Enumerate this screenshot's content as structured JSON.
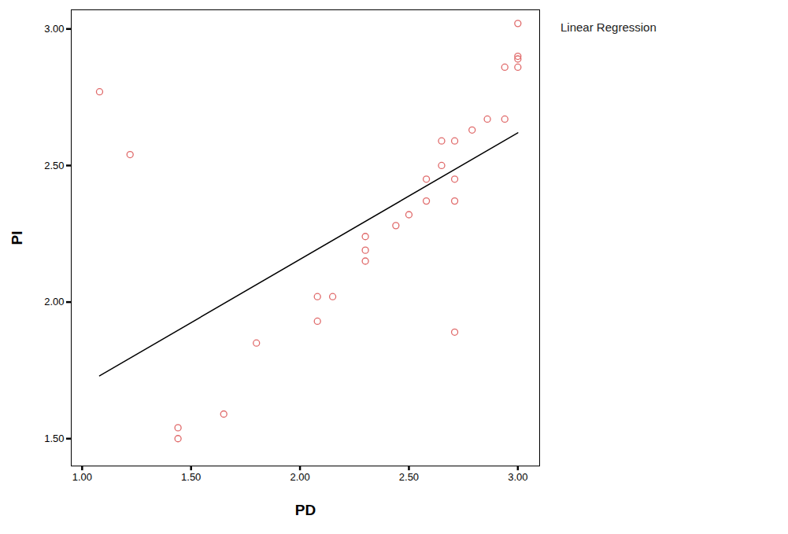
{
  "chart_data": {
    "type": "scatter",
    "x_label": "PD",
    "y_label": "PI",
    "xlim": [
      0.95,
      3.1
    ],
    "ylim": [
      1.4,
      3.07
    ],
    "xticks": [
      {
        "value": 1,
        "label": "1.00"
      },
      {
        "value": 1.5,
        "label": "1.50"
      },
      {
        "value": 2,
        "label": "2.00"
      },
      {
        "value": 2.5,
        "label": "2.50"
      },
      {
        "value": 3,
        "label": "3.00"
      }
    ],
    "yticks": [
      {
        "value": 1.5,
        "label": "1.50"
      },
      {
        "value": 2,
        "label": "2.00"
      },
      {
        "value": 2.5,
        "label": "2.50"
      },
      {
        "value": 3,
        "label": "3.00"
      }
    ],
    "legend": "top-right",
    "series": [
      {
        "type": "scatter",
        "color": "#e06a6a",
        "marker": "circle",
        "x": [
          1.08,
          1.22,
          1.44,
          1.44,
          1.65,
          1.8,
          2.08,
          2.08,
          2.15,
          2.3,
          2.3,
          2.3,
          2.44,
          2.5,
          2.58,
          2.58,
          2.65,
          2.65,
          2.71,
          2.71,
          2.71,
          2.71,
          2.79,
          2.86,
          2.94,
          2.94,
          3.0,
          3.0,
          3.0,
          3.0
        ],
        "values": [
          2.77,
          2.54,
          1.54,
          1.5,
          1.59,
          1.85,
          1.93,
          2.02,
          2.02,
          2.15,
          2.19,
          2.24,
          2.28,
          2.32,
          2.37,
          2.45,
          2.5,
          2.59,
          2.59,
          2.45,
          2.37,
          1.89,
          2.63,
          2.67,
          2.67,
          2.86,
          2.86,
          2.89,
          2.9,
          3.02
        ]
      },
      {
        "name": "Linear Regression",
        "type": "line",
        "color": "#000000",
        "line_style": "solid",
        "x": [
          1.08,
          3.0
        ],
        "values": [
          1.73,
          2.62
        ]
      }
    ]
  }
}
